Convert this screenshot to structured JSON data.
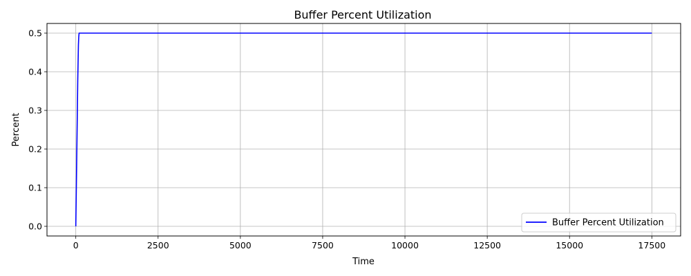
{
  "chart_data": {
    "type": "line",
    "title": "Buffer Percent Utilization",
    "xlabel": "Time",
    "ylabel": "Percent",
    "xlim": [
      -875,
      18375
    ],
    "ylim": [
      -0.025,
      0.525
    ],
    "xticks": [
      0,
      2500,
      5000,
      7500,
      10000,
      12500,
      15000,
      17500
    ],
    "xtick_labels": [
      "0",
      "2500",
      "5000",
      "7500",
      "10000",
      "12500",
      "15000",
      "17500"
    ],
    "yticks": [
      0.0,
      0.1,
      0.2,
      0.3,
      0.4,
      0.5
    ],
    "ytick_labels": [
      "0.0",
      "0.1",
      "0.2",
      "0.3",
      "0.4",
      "0.5"
    ],
    "grid": true,
    "legend_position": "bottom-right",
    "series": [
      {
        "name": "Buffer Percent Utilization",
        "color": "#0000ff",
        "x": [
          0,
          20,
          40,
          60,
          80,
          90,
          100,
          17500
        ],
        "y": [
          0.0,
          0.12,
          0.25,
          0.38,
          0.47,
          0.49,
          0.5,
          0.5
        ]
      }
    ]
  }
}
